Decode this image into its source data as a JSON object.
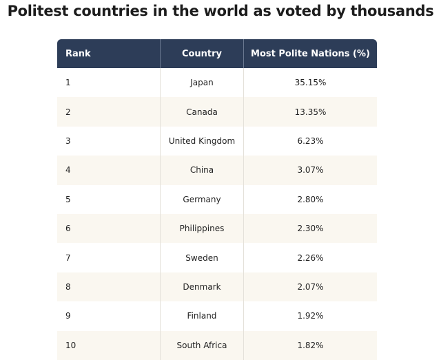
{
  "title": "Politest countries in the world as voted by thousands",
  "table": {
    "header": [
      "Rank",
      "Country",
      "Most Polite Nations (%)"
    ],
    "rows": [
      [
        "1",
        "Japan",
        "35.15%"
      ],
      [
        "2",
        "Canada",
        "13.35%"
      ],
      [
        "3",
        "United Kingdom",
        "6.23%"
      ],
      [
        "4",
        "China",
        "3.07%"
      ],
      [
        "5",
        "Germany",
        "2.80%"
      ],
      [
        "6",
        "Philippines",
        "2.30%"
      ],
      [
        "7",
        "Sweden",
        "2.26%"
      ],
      [
        "8",
        "Denmark",
        "2.07%"
      ],
      [
        "9",
        "Finland",
        "1.92%"
      ],
      [
        "10",
        "South Africa",
        "1.82%"
      ]
    ]
  }
}
